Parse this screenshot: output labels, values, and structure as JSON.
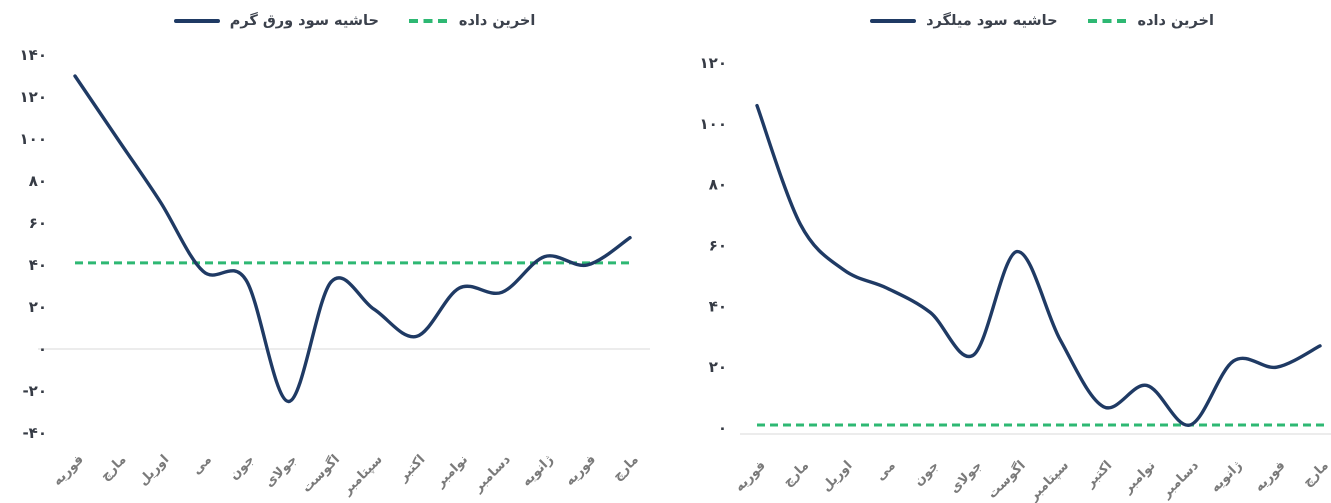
{
  "colors": {
    "series_line": "#1f3a64",
    "latest_line": "#2eb873",
    "y_tick_text": "#363b45",
    "month_text": "#7a7a7a",
    "grid_line": "#d9d9d9",
    "background": "#ffffff"
  },
  "chart_data": [
    {
      "id": "left-chart",
      "type": "line",
      "title": "",
      "legend": {
        "series_label": "حاشیه سود ورق گرم",
        "latest_label": "اخرین داده"
      },
      "legend_position": "top-center",
      "categories": [
        "فوریه",
        "مارچ",
        "اوریل",
        "می",
        "جون",
        "جولای",
        "اگوست",
        "سپتامبر",
        "اکتبر",
        "نوامبر",
        "دسامبر",
        "ژانویه",
        "فوریه",
        "مارچ"
      ],
      "series": [
        {
          "name": "حاشیه سود ورق گرم",
          "style": "solid",
          "values": [
            130,
            100,
            70,
            37,
            33,
            -25,
            32,
            19,
            6,
            29,
            27,
            44,
            40,
            53
          ]
        }
      ],
      "latest_value": 41,
      "latest_style": "dashed",
      "ylim": [
        -40,
        140
      ],
      "y_tick_values": [
        140,
        120,
        100,
        80,
        60,
        40,
        20,
        0,
        -20,
        -40
      ],
      "y_tick_labels": [
        "۱۴۰",
        "۱۲۰",
        "۱۰۰",
        "۸۰",
        "۶۰",
        "۴۰",
        "۲۰",
        "۰",
        "-۲۰",
        "-۴۰"
      ],
      "grid": "horizontal-zero-line-only",
      "xlabel": "",
      "ylabel": ""
    },
    {
      "id": "right-chart",
      "type": "line",
      "title": "",
      "legend": {
        "series_label": "حاشیه سود میلگرد",
        "latest_label": "اخرین داده"
      },
      "legend_position": "top-center",
      "categories": [
        "فوریه",
        "مارچ",
        "اوریل",
        "می",
        "جون",
        "جولای",
        "اگوست",
        "سپتامبر",
        "اکتبر",
        "نوامبر",
        "دسامبر",
        "ژانویه",
        "فوریه",
        "مارچ"
      ],
      "series": [
        {
          "name": "حاشیه سود میلگرد",
          "style": "solid",
          "values": [
            106,
            67,
            52,
            46,
            38,
            24,
            58,
            29,
            7,
            14,
            1,
            22,
            20,
            27
          ]
        }
      ],
      "latest_value": 1,
      "latest_style": "dashed",
      "ylim": [
        0,
        120
      ],
      "y_tick_values": [
        120,
        100,
        80,
        60,
        40,
        20,
        0
      ],
      "y_tick_labels": [
        "۱۲۰",
        "۱۰۰",
        "۸۰",
        "۶۰",
        "۴۰",
        "۲۰",
        "۰"
      ],
      "grid": "horizontal-zero-line-only",
      "xlabel": "",
      "ylabel": ""
    }
  ]
}
